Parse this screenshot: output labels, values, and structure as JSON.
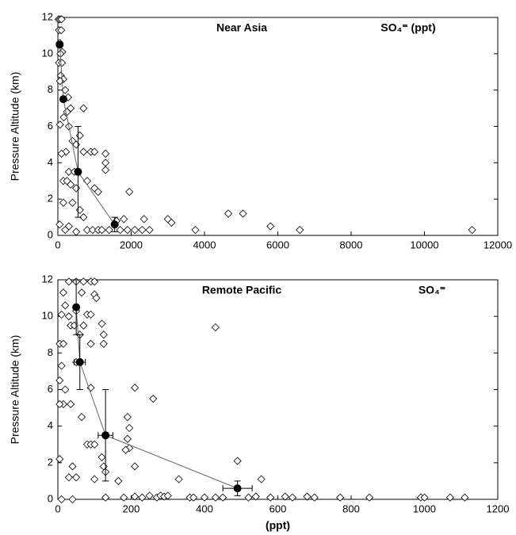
{
  "chart_data": [
    {
      "type": "scatter",
      "annotations": [
        "Near Asia",
        "SO₄⁼ (ppt)"
      ],
      "ylabel": "Pressure Altitude (km)",
      "xlim": [
        0,
        12000
      ],
      "xticks": [
        0,
        2000,
        4000,
        6000,
        8000,
        10000,
        12000
      ],
      "ylim": [
        0,
        12
      ],
      "yticks": [
        0,
        2,
        4,
        6,
        8,
        10,
        12
      ],
      "series": [
        {
          "color": "#000000",
          "marker": "diamond",
          "x": [
            20,
            60,
            100,
            30,
            90,
            50,
            120,
            70,
            30,
            110,
            80,
            150,
            60,
            200,
            280,
            350,
            250,
            160,
            60,
            300,
            400,
            500,
            600,
            220,
            700,
            900,
            1000,
            1300,
            1300,
            1300,
            100,
            300,
            450,
            800,
            150,
            250,
            350,
            500,
            1000,
            1100,
            150,
            400,
            600,
            700,
            1800,
            1600,
            1950,
            2350,
            3000,
            3100,
            3750,
            4650,
            5050,
            5800,
            6600,
            11300,
            200,
            500,
            800,
            950,
            1100,
            1200,
            1400,
            1700,
            1900,
            2100,
            2300,
            2500,
            50,
            300,
            700
          ],
          "values": [
            11.9,
            11.9,
            11.9,
            11.3,
            11.3,
            10.6,
            10.1,
            10.0,
            9.5,
            9.5,
            8.8,
            8.6,
            8.5,
            8.0,
            7.6,
            7.0,
            6.8,
            6.5,
            6.1,
            6.0,
            5.2,
            5.0,
            5.5,
            4.6,
            4.6,
            4.6,
            4.6,
            4.5,
            4.0,
            3.6,
            4.5,
            3.5,
            3.5,
            3.0,
            3.0,
            3.0,
            2.8,
            2.6,
            2.6,
            2.4,
            1.8,
            1.8,
            1.4,
            1.0,
            0.9,
            0.8,
            2.4,
            0.9,
            0.9,
            0.7,
            0.3,
            1.2,
            1.2,
            0.5,
            0.3,
            0.3,
            0.3,
            0.2,
            0.3,
            0.3,
            0.3,
            0.3,
            0.3,
            0.3,
            0.3,
            0.3,
            0.3,
            0.3,
            0.6,
            0.5,
            7.0
          ]
        },
        {
          "color": "#000000",
          "marker": "circle",
          "line": true,
          "x": [
            50,
            150,
            550,
            1550
          ],
          "values": [
            10.5,
            7.5,
            3.5,
            0.6
          ],
          "y_err_low": [
            null,
            null,
            1.0,
            0.2
          ],
          "y_err_high": [
            null,
            null,
            6.0,
            1.0
          ],
          "x_err_low": [
            null,
            null,
            null,
            null
          ],
          "x_err_high": [
            null,
            null,
            null,
            null
          ]
        }
      ]
    },
    {
      "type": "scatter",
      "annotations": [
        "Remote Pacific",
        "SO₄⁼"
      ],
      "ylabel": "Pressure Altitude (km)",
      "xlabel": "(ppt)",
      "xlim": [
        0,
        1200
      ],
      "xticks": [
        0,
        200,
        400,
        600,
        800,
        1000,
        1200
      ],
      "ylim": [
        0,
        12
      ],
      "yticks": [
        0,
        2,
        4,
        6,
        8,
        10,
        12
      ],
      "series": [
        {
          "color": "#000000",
          "marker": "diamond",
          "x": [
            30,
            50,
            70,
            90,
            100,
            15,
            65,
            100,
            105,
            20,
            50,
            80,
            90,
            10,
            30,
            35,
            45,
            70,
            120,
            125,
            60,
            5,
            15,
            90,
            125,
            430,
            10,
            50,
            5,
            20,
            90,
            210,
            65,
            190,
            15,
            5,
            35,
            260,
            195,
            190,
            195,
            185,
            80,
            90,
            100,
            120,
            125,
            130,
            5,
            40,
            30,
            50,
            100,
            165,
            210,
            330,
            490,
            555,
            130,
            180,
            210,
            230,
            250,
            270,
            280,
            290,
            300,
            360,
            370,
            400,
            430,
            450,
            520,
            540,
            580,
            620,
            640,
            680,
            700,
            770,
            850,
            990,
            1000,
            1070,
            1110,
            10,
            40
          ],
          "values": [
            11.9,
            11.9,
            11.9,
            11.9,
            11.9,
            11.3,
            11.3,
            11.2,
            11.0,
            10.6,
            10.3,
            10.1,
            10.1,
            10.1,
            10.0,
            9.5,
            9.5,
            9.5,
            9.6,
            9.0,
            9.0,
            8.5,
            8.5,
            8.5,
            8.5,
            9.4,
            7.3,
            7.5,
            6.5,
            6.0,
            6.1,
            6.1,
            4.5,
            4.5,
            5.2,
            5.2,
            5.2,
            5.5,
            3.9,
            3.3,
            2.8,
            2.7,
            3.0,
            3.0,
            3.0,
            2.3,
            1.8,
            1.5,
            2.2,
            1.8,
            1.2,
            1.2,
            1.1,
            1.0,
            1.8,
            1.1,
            2.1,
            1.1,
            0.1,
            0.1,
            0.15,
            0.1,
            0.2,
            0.1,
            0.2,
            0.15,
            0.2,
            0.1,
            0.1,
            0.1,
            0.1,
            0.1,
            0.1,
            0.15,
            0.1,
            0.15,
            0.1,
            0.15,
            0.1,
            0.1,
            0.1,
            0.1,
            0.1,
            0.1,
            0.1,
            0.0,
            0.0
          ]
        },
        {
          "color": "#000000",
          "marker": "circle",
          "line": true,
          "x": [
            50,
            60,
            130,
            490
          ],
          "values": [
            10.5,
            7.5,
            3.5,
            0.6
          ],
          "y_err_low": [
            9.0,
            6.0,
            1.0,
            0.2
          ],
          "y_err_high": [
            12.0,
            9.0,
            6.0,
            1.0
          ],
          "x_err_low": [
            null,
            45,
            110,
            450
          ],
          "x_err_high": [
            null,
            75,
            150,
            530
          ]
        }
      ]
    }
  ]
}
